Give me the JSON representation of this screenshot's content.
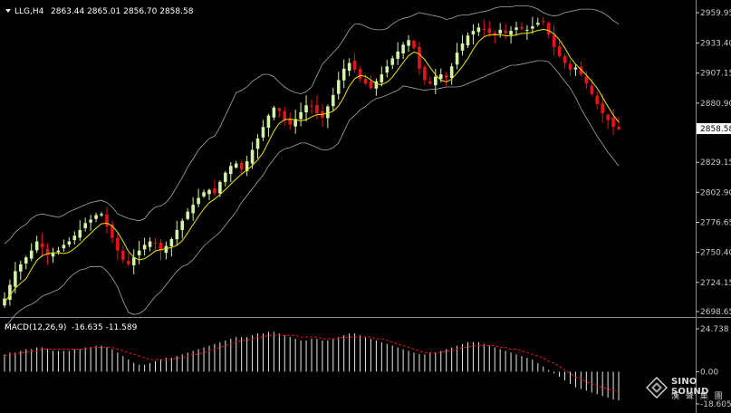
{
  "header": {
    "symbol": "LLG,H4",
    "ohlc": "2863.44 2865.01 2856.70 2858.58"
  },
  "macd_header": {
    "label": "MACD(12,26,9)",
    "values": "-16.635 -11.589"
  },
  "colors": {
    "background": "#000000",
    "bull_candle": "#d4f2a8",
    "bear_candle": "#e8131a",
    "ma_line": "#e8e600",
    "ma_line_2": "#f57a2a",
    "bollinger": "#a7a7a7",
    "axis": "#c8c8c8",
    "macd_hist": "#e8e8e8",
    "macd_signal": "#e8131a",
    "current_price_box": "#ffffff"
  },
  "watermark": {
    "title": "SINO SOUND",
    "subtitle": "漢 聲 集 團",
    "icon": "diamond-logo-icon"
  },
  "chart_data": [
    {
      "type": "candlestick",
      "title": "LLG,H4",
      "ylim": [
        2698.65,
        2959.95
      ],
      "y_ticks": [
        "2959.95",
        "2933.40",
        "2907.15",
        "2880.90",
        "2829.15",
        "2802.90",
        "2776.65",
        "2750.40",
        "2724.15",
        "2698.65"
      ],
      "current_price": "2858.58",
      "x_axis": "H4 bars, no time labels shown",
      "close_series": [
        2710,
        2722,
        2734,
        2740,
        2746,
        2752,
        2760,
        2755,
        2748,
        2750,
        2752,
        2757,
        2760,
        2765,
        2770,
        2776,
        2779,
        2783,
        2784,
        2773,
        2763,
        2752,
        2744,
        2740,
        2746,
        2752,
        2757,
        2760,
        2758,
        2752,
        2756,
        2762,
        2770,
        2778,
        2786,
        2792,
        2798,
        2803,
        2805,
        2802,
        2812,
        2820,
        2826,
        2828,
        2823,
        2830,
        2840,
        2850,
        2860,
        2870,
        2877,
        2874,
        2866,
        2862,
        2867,
        2873,
        2879,
        2878,
        2872,
        2868,
        2878,
        2888,
        2901,
        2911,
        2916,
        2910,
        2902,
        2898,
        2894,
        2900,
        2906,
        2913,
        2920,
        2926,
        2932,
        2936,
        2929,
        2911,
        2901,
        2898,
        2904,
        2906,
        2903,
        2913,
        2925,
        2933,
        2940,
        2944,
        2947,
        2945,
        2942,
        2940,
        2945,
        2942,
        2944,
        2947,
        2946,
        2945,
        2948,
        2951,
        2952,
        2941,
        2930,
        2922,
        2916,
        2910,
        2912,
        2906,
        2898,
        2889,
        2880,
        2872,
        2866,
        2860,
        2858
      ],
      "bollinger_upper": [
        2758,
        2762,
        2768,
        2772,
        2775,
        2780,
        2783,
        2784,
        2783,
        2782,
        2781,
        2783,
        2786,
        2788,
        2790,
        2792,
        2794,
        2795,
        2796,
        2794,
        2790,
        2784,
        2782,
        2780,
        2779,
        2778,
        2780,
        2786,
        2790,
        2791,
        2794,
        2800,
        2808,
        2816,
        2825,
        2832,
        2840,
        2845,
        2850,
        2852,
        2860,
        2870,
        2880,
        2890,
        2892,
        2895,
        2900,
        2903,
        2906,
        2906,
        2904,
        2899,
        2895,
        2892,
        2890,
        2889,
        2891,
        2895,
        2905,
        2915,
        2920,
        2925,
        2930,
        2937,
        2945,
        2950,
        2950,
        2948,
        2946,
        2945,
        2945,
        2946,
        2950,
        2953,
        2955,
        2956,
        2958,
        2960,
        2959,
        2958,
        2957,
        2956,
        2954,
        2955,
        2957,
        2958,
        2958,
        2959,
        2960,
        2961,
        2962,
        2964,
        2965,
        2965,
        2965,
        2966,
        2966,
        2966,
        2965,
        2963,
        2960,
        2958,
        2957,
        2958,
        2960,
        2961,
        2962,
        2963,
        2963,
        2963,
        2962,
        2960,
        2957,
        2953,
        2950
      ],
      "bollinger_lower": [
        2684,
        2690,
        2696,
        2700,
        2703,
        2705,
        2708,
        2712,
        2714,
        2716,
        2718,
        2722,
        2728,
        2732,
        2735,
        2736,
        2738,
        2738,
        2738,
        2734,
        2728,
        2720,
        2708,
        2698,
        2696,
        2697,
        2700,
        2706,
        2712,
        2716,
        2722,
        2728,
        2734,
        2738,
        2740,
        2744,
        2750,
        2756,
        2760,
        2764,
        2768,
        2774,
        2780,
        2786,
        2794,
        2800,
        2806,
        2812,
        2818,
        2826,
        2832,
        2838,
        2841,
        2842,
        2844,
        2846,
        2846,
        2844,
        2842,
        2840,
        2840,
        2842,
        2846,
        2856,
        2866,
        2870,
        2875,
        2878,
        2882,
        2885,
        2886,
        2888,
        2890,
        2892,
        2896,
        2895,
        2894,
        2893,
        2892,
        2893,
        2893,
        2894,
        2895,
        2895,
        2895,
        2896,
        2898,
        2900,
        2902,
        2904,
        2906,
        2908,
        2910,
        2912,
        2914,
        2914,
        2915,
        2916,
        2917,
        2918,
        2918,
        2917,
        2912,
        2906,
        2900,
        2894,
        2886,
        2876,
        2868,
        2860,
        2852,
        2845,
        2838,
        2832,
        2826
      ]
    },
    {
      "type": "bar",
      "title": "MACD(12,26,9)",
      "y_ticks": [
        "24.738",
        "0.00",
        "-18.605"
      ],
      "ylim": [
        -18.605,
        24.738
      ],
      "histogram": [
        10,
        11,
        11,
        12,
        13,
        13,
        14,
        14,
        13,
        12,
        12,
        12,
        12,
        13,
        13,
        14,
        14,
        15,
        15,
        14,
        13,
        11,
        9,
        7,
        5,
        4,
        4,
        5,
        6,
        7,
        8,
        8,
        9,
        10,
        11,
        12,
        13,
        14,
        15,
        16,
        17,
        18,
        19,
        20,
        20,
        20,
        21,
        22,
        22,
        23,
        23,
        22,
        21,
        20,
        19,
        18,
        18,
        19,
        19,
        18,
        18,
        19,
        20,
        21,
        22,
        22,
        21,
        20,
        19,
        18,
        17,
        16,
        15,
        14,
        13,
        12,
        11,
        10,
        10,
        11,
        11,
        12,
        13,
        14,
        15,
        16,
        17,
        17,
        17,
        16,
        15,
        14,
        13,
        12,
        11,
        10,
        9,
        8,
        7,
        5,
        3,
        1,
        -1,
        -3,
        -5,
        -7,
        -9,
        -10,
        -11,
        -12,
        -13,
        -14,
        -15,
        -16,
        -16.6
      ],
      "signal": [
        9,
        10,
        10,
        11,
        11,
        12,
        12,
        13,
        13,
        13,
        13,
        13,
        13,
        13,
        13,
        13,
        14,
        14,
        14,
        14,
        14,
        13,
        12,
        11,
        10,
        9,
        8,
        7,
        7,
        7,
        7,
        7,
        8,
        8,
        9,
        10,
        10,
        11,
        12,
        13,
        14,
        15,
        16,
        17,
        18,
        18,
        19,
        20,
        20,
        21,
        21,
        21,
        21,
        21,
        21,
        20,
        20,
        20,
        20,
        19,
        19,
        19,
        19,
        20,
        20,
        20,
        20,
        20,
        20,
        19,
        19,
        18,
        17,
        16,
        15,
        14,
        13,
        12,
        11,
        11,
        11,
        11,
        12,
        12,
        13,
        14,
        14,
        15,
        15,
        15,
        15,
        15,
        14,
        14,
        13,
        13,
        12,
        11,
        10,
        9,
        8,
        6,
        5,
        3,
        1,
        -1,
        -3,
        -4,
        -6,
        -7,
        -8,
        -9,
        -10,
        -11,
        -11.6
      ]
    }
  ]
}
